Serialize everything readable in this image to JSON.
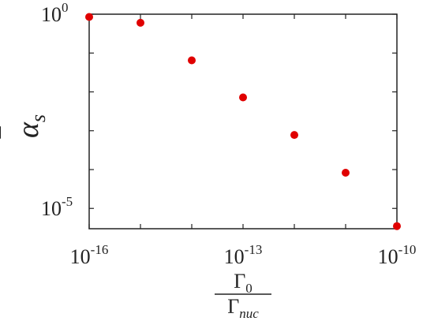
{
  "chart_data": {
    "type": "scatter",
    "title": "",
    "x_scale": "log",
    "y_scale": "log",
    "xlim": [
      1e-16,
      1e-10
    ],
    "ylim": [
      3e-06,
      1.0
    ],
    "grid": false,
    "marker_color": "#e00000",
    "xlabel": {
      "numerator": {
        "base": "Γ",
        "sub": "0"
      },
      "denominator": {
        "base": "Γ",
        "sub": "nuc"
      }
    },
    "ylabel": {
      "base": "α",
      "accent": "¯",
      "sub": "s"
    },
    "x_ticks": [
      {
        "value": 1e-16,
        "base": "10",
        "exp": "-16"
      },
      {
        "value": 1e-13,
        "base": "10",
        "exp": "-13"
      },
      {
        "value": 1e-10,
        "base": "10",
        "exp": "-10"
      }
    ],
    "y_ticks": [
      {
        "value": 1.0,
        "base": "10",
        "exp": "0"
      },
      {
        "value": 1e-05,
        "base": "10",
        "exp": "-5"
      }
    ],
    "x": [
      1e-16,
      1e-15,
      1e-14,
      1e-13,
      1e-12,
      1e-11,
      1e-10
    ],
    "y": [
      0.85,
      0.6,
      0.065,
      0.0072,
      0.00078,
      8.3e-05,
      3.5e-06
    ]
  }
}
